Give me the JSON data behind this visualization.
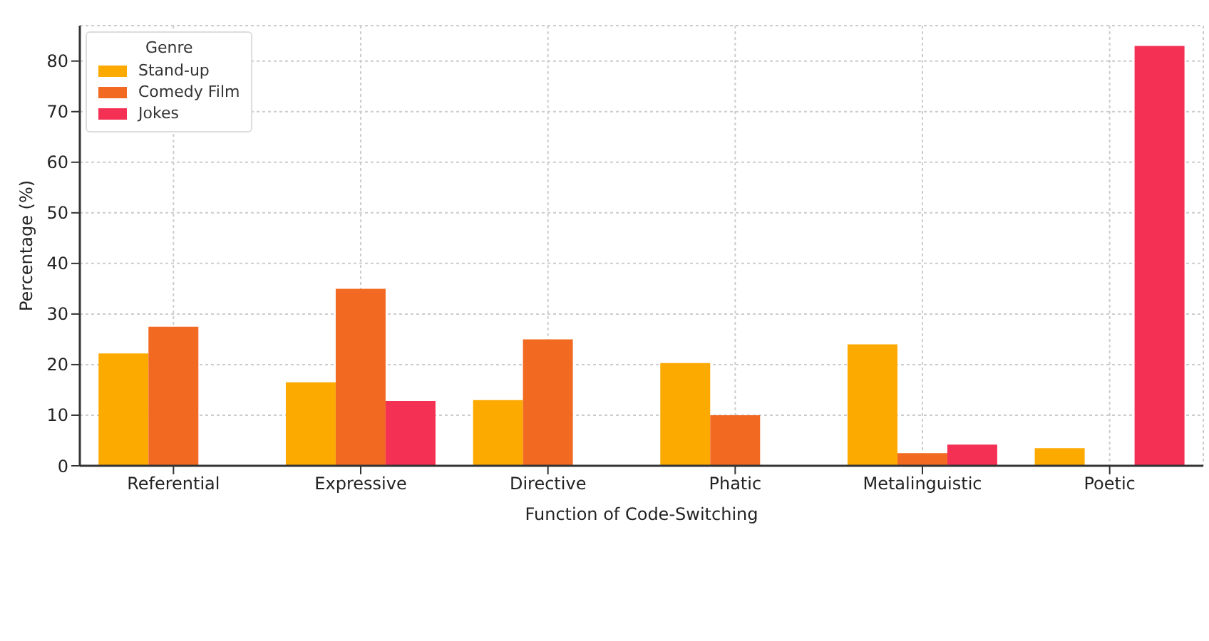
{
  "chart_data": {
    "type": "bar",
    "xlabel": "Function of Code-Switching",
    "ylabel": "Percentage (%)",
    "legend_title": "Genre",
    "categories": [
      "Referential",
      "Expressive",
      "Directive",
      "Phatic",
      "Metalinguistic",
      "Poetic"
    ],
    "series": [
      {
        "name": "Stand-up",
        "color": "#fdaa00",
        "values": [
          22.2,
          16.5,
          13,
          20.3,
          24,
          3.5
        ]
      },
      {
        "name": "Comedy Film",
        "color": "#f26a21",
        "values": [
          27.5,
          35,
          25,
          10,
          2.5,
          0
        ]
      },
      {
        "name": "Jokes",
        "color": "#f53055",
        "values": [
          0,
          12.8,
          0,
          0,
          4.2,
          83
        ]
      }
    ],
    "ylim": [
      0,
      87
    ],
    "yticks": [
      0,
      10,
      20,
      30,
      40,
      50,
      60,
      70,
      80
    ],
    "grid": true,
    "legend": "top left"
  }
}
